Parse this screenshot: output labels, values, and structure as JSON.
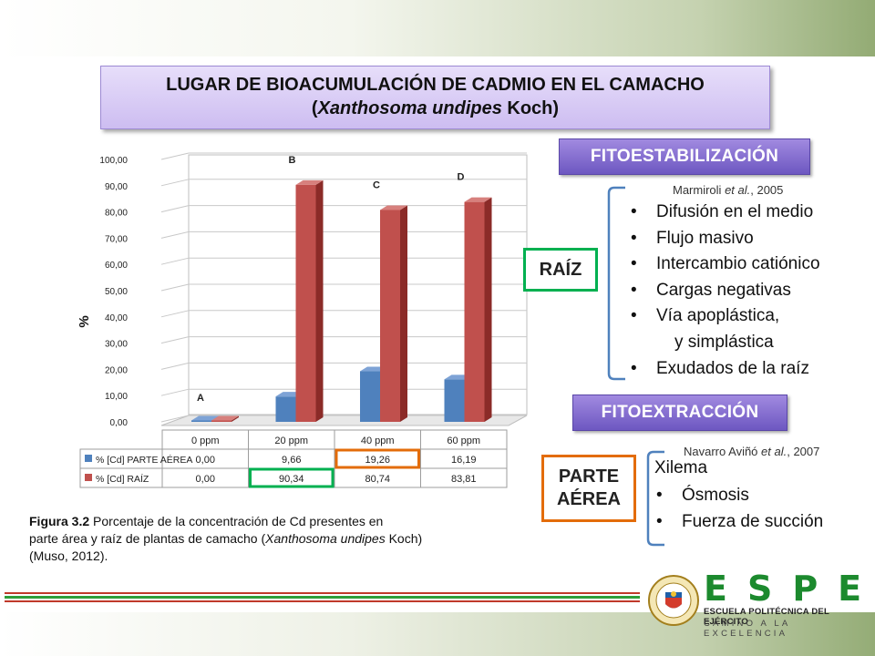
{
  "title": {
    "line1": "LUGAR DE BIOACUMULACIÓN DE CADMIO EN EL CAMACHO",
    "line2_open": "(",
    "line2_italic": "Xanthosoma undipes",
    "line2_tail": " Koch)"
  },
  "chart_data": {
    "type": "bar",
    "categories": [
      "0 ppm",
      "20 ppm",
      "40 ppm",
      "60 ppm"
    ],
    "series": [
      {
        "name": "% [Cd] PARTE AÉREA",
        "values": [
          0.0,
          9.66,
          19.26,
          16.19
        ],
        "display": [
          "0,00",
          "9,66",
          "19,26",
          "16,19"
        ],
        "color": "#4f81bd"
      },
      {
        "name": "% [Cd] RAÍZ",
        "values": [
          0.0,
          90.34,
          80.74,
          83.81
        ],
        "display": [
          "0,00",
          "90,34",
          "80,74",
          "83,81"
        ],
        "color": "#c0504d"
      }
    ],
    "ylabel": "%",
    "ylim": [
      0,
      100
    ],
    "yticks": [
      "0,00",
      "10,00",
      "20,00",
      "30,00",
      "40,00",
      "50,00",
      "60,00",
      "70,00",
      "80,00",
      "90,00",
      "100,00"
    ],
    "group_letters": [
      "A",
      "B",
      "C",
      "D"
    ],
    "grid": true,
    "legend": "data-table-below",
    "highlights": [
      {
        "series": 0,
        "category": 2,
        "color": "#e36c0a"
      },
      {
        "series": 1,
        "category": 1,
        "color": "#00b050"
      }
    ]
  },
  "caption": {
    "label": "Figura 3.2",
    "text1": " Porcentaje de la concentración de Cd presentes en",
    "text2": "parte área y raíz de plantas de camacho (",
    "italic": "Xanthosoma undipes",
    "text3": " Koch)",
    "text4": "(Muso, 2012)."
  },
  "fitoestabilizacion": {
    "button": "FITOESTABILIZACIÓN",
    "citation": {
      "pre": "Marmiroli ",
      "italic": "et al.",
      "post": ", 2005"
    },
    "box_label": "RAÍZ",
    "items": [
      "Difusión en el medio",
      "Flujo masivo",
      "Intercambio catiónico",
      "Cargas negativas",
      "Vía apoplástica,"
    ],
    "continuation": "y simplástica",
    "last_item": "Exudados de la raíz"
  },
  "fitoextraccion": {
    "button": "FITOEXTRACCIÓN",
    "citation": {
      "pre": "Navarro Aviñó ",
      "italic": "et al.",
      "post": ", 2007"
    },
    "box_label_line1": "PARTE",
    "box_label_line2": "AÉREA",
    "heading": "Xilema",
    "items": [
      "Ósmosis",
      "Fuerza de succión"
    ]
  },
  "bullet": "•",
  "logo": {
    "letters": "ESPE",
    "name": "ESCUELA POLITÉCNICA DEL EJÉRCITO",
    "motto": "CAMINO A LA EXCELENCIA",
    "seal_text": "ESCUELA POLITÉCNICA DEL EJÉRCITO · ECUADOR"
  },
  "colors": {
    "accent_purple": "#6d57c1",
    "green_box": "#00b050",
    "orange_box": "#e36c0a",
    "brace_blue": "#4f81bd",
    "logo_green": "#1c8a2e",
    "stripe_red": "#c0392b",
    "stripe_green": "#2e9e3a"
  }
}
